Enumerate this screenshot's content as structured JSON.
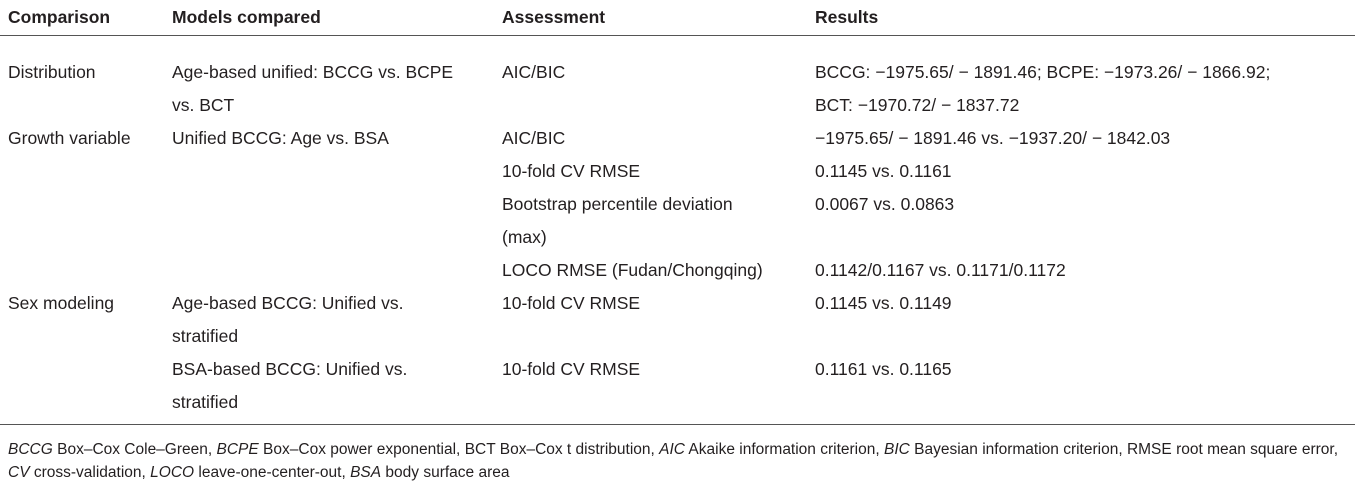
{
  "table": {
    "header": [
      "Comparison",
      "Models compared",
      "Assessment",
      "Results"
    ],
    "rows": [
      [
        [
          "Distribution"
        ],
        [
          "Age-based unified: BCCG vs. BCPE",
          "vs. BCT"
        ],
        [
          "AIC/BIC"
        ],
        [
          "BCCG: −1975.65/ − 1891.46; BCPE: −1973.26/ − 1866.92;",
          "BCT: −1970.72/ − 1837.72"
        ]
      ],
      [
        [
          "Growth variable"
        ],
        [
          "Unified BCCG: Age vs. BSA"
        ],
        [
          "AIC/BIC"
        ],
        [
          "−1975.65/ − 1891.46 vs. −1937.20/ − 1842.03"
        ]
      ],
      [
        [],
        [],
        [
          "10-fold CV RMSE"
        ],
        [
          "0.1145 vs. 0.1161"
        ]
      ],
      [
        [],
        [],
        [
          "Bootstrap percentile deviation",
          "(max)"
        ],
        [
          "0.0067 vs. 0.0863"
        ]
      ],
      [
        [],
        [],
        [
          "LOCO RMSE (Fudan/Chongqing)"
        ],
        [
          "0.1142/0.1167 vs. 0.1171/0.1172"
        ]
      ],
      [
        [
          "Sex modeling"
        ],
        [
          "Age-based BCCG: Unified vs.",
          "stratified"
        ],
        [
          "10-fold CV RMSE"
        ],
        [
          "0.1145 vs. 0.1149"
        ]
      ],
      [
        [],
        [
          "BSA-based BCCG: Unified vs.",
          "stratified"
        ],
        [
          "10-fold CV RMSE"
        ],
        [
          "0.1161 vs. 0.1165"
        ]
      ]
    ]
  },
  "footnote": [
    {
      "abbr": "BCCG",
      "def": "Box–Cox Cole–Green,",
      "italic": true
    },
    {
      "abbr": "BCPE",
      "def": "Box–Cox power exponential,",
      "italic": true
    },
    {
      "abbr": "BCT",
      "def": "Box–Cox t distribution,",
      "italic": false
    },
    {
      "abbr": "AIC",
      "def": "Akaike information criterion,",
      "italic": true
    },
    {
      "abbr": "BIC",
      "def": "Bayesian information criterion,",
      "italic": true
    },
    {
      "abbr": "RMSE",
      "def": "root mean square error,",
      "italic": false
    },
    {
      "abbr": "CV",
      "def": "cross-validation,",
      "italic": true
    },
    {
      "abbr": "LOCO",
      "def": "leave-one-center-out,",
      "italic": true
    },
    {
      "abbr": "BSA",
      "def": "body surface area",
      "italic": true
    }
  ]
}
